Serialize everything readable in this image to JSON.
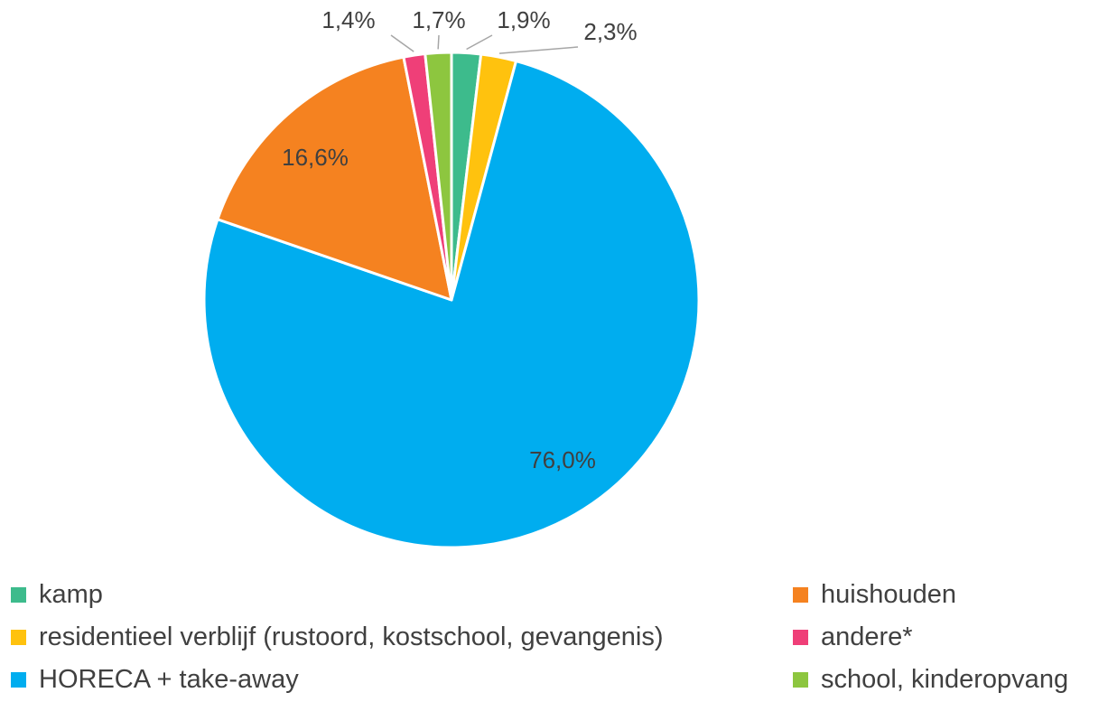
{
  "chart_data": {
    "type": "pie",
    "slices": [
      {
        "label": "kamp",
        "value": 1.9,
        "display": "1,9%",
        "color": "#3dbb8c"
      },
      {
        "label": "residentieel verblijf (rustoord, kostschool, gevangenis)",
        "value": 2.3,
        "display": "2,3%",
        "color": "#ffc20e"
      },
      {
        "label": "HORECA + take-away",
        "value": 76.0,
        "display": "76,0%",
        "color": "#00adef"
      },
      {
        "label": "huishouden",
        "value": 16.6,
        "display": "16,6%",
        "color": "#f58220"
      },
      {
        "label": "andere*",
        "value": 1.4,
        "display": "1,4%",
        "color": "#ef3f78"
      },
      {
        "label": "school, kinderopvang",
        "value": 1.7,
        "display": "1,7%",
        "color": "#8dc63f"
      }
    ],
    "legend": {
      "placement": "bottom",
      "items": [
        "kamp",
        "residentieel verblijf (rustoord, kostschool, gevangenis)",
        "HORECA + take-away",
        "huishouden",
        "andere*",
        "school, kinderopvang"
      ]
    }
  }
}
